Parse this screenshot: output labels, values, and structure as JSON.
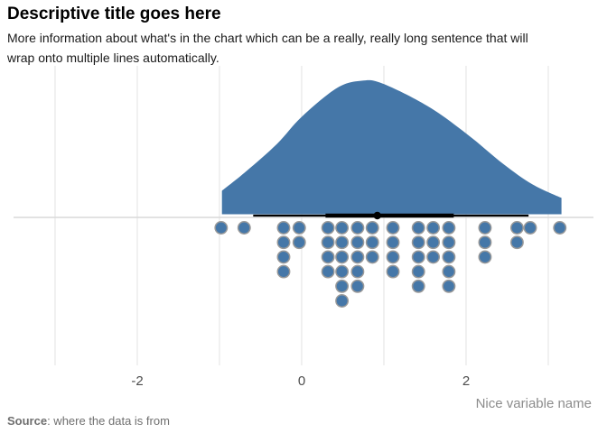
{
  "header": {
    "title": "Descriptive title goes here",
    "subtitle": "More information about what's in the chart which can be a really, really long sentence that will wrap onto multiple lines automatically."
  },
  "footer": {
    "source_label": "Source",
    "source_text": ": where the data is from"
  },
  "chart_data": {
    "type": "area",
    "subtype": "raincloud-halfeye-with-dotplot",
    "title": "Descriptive title goes here",
    "xlabel": "Nice variable name",
    "ylabel": "",
    "xlim": [
      -3.5,
      3.55
    ],
    "x_ticks": [
      -2,
      0,
      2
    ],
    "gridlines_x": [
      -3,
      -2,
      -1,
      0,
      1,
      2,
      3
    ],
    "grid": "vertical-only",
    "density": {
      "x": [
        -0.97,
        -0.67,
        -0.3,
        0.0,
        0.43,
        0.73,
        0.98,
        1.53,
        2.01,
        2.45,
        2.81,
        3.16
      ],
      "height": [
        0.176,
        0.324,
        0.527,
        0.73,
        0.946,
        1.0,
        0.98,
        0.811,
        0.601,
        0.378,
        0.223,
        0.122
      ]
    },
    "dots": {
      "x": [
        -0.98,
        -0.7,
        -0.22,
        -0.03,
        0.32,
        0.49,
        0.68,
        0.86,
        1.11,
        1.42,
        1.6,
        1.79,
        2.23,
        2.62,
        2.78,
        3.14
      ],
      "count": [
        1,
        1,
        4,
        2,
        4,
        6,
        5,
        3,
        4,
        5,
        3,
        5,
        3,
        2,
        1,
        1
      ],
      "total_points": 50
    },
    "interval": {
      "point": 0.92,
      "thick": [
        0.29,
        1.85
      ],
      "thin": [
        -0.59,
        2.76
      ]
    },
    "colors": {
      "fill_blue": "#4577a8",
      "dot_stroke": "#999999",
      "interval_black": "#000000",
      "gridline": "#e9e9e9",
      "zero_line": "#d9d9d9",
      "tick_label": "#4d4d4d",
      "axis_label": "#8c8c8c",
      "source_text": "#6f6f6f"
    }
  }
}
